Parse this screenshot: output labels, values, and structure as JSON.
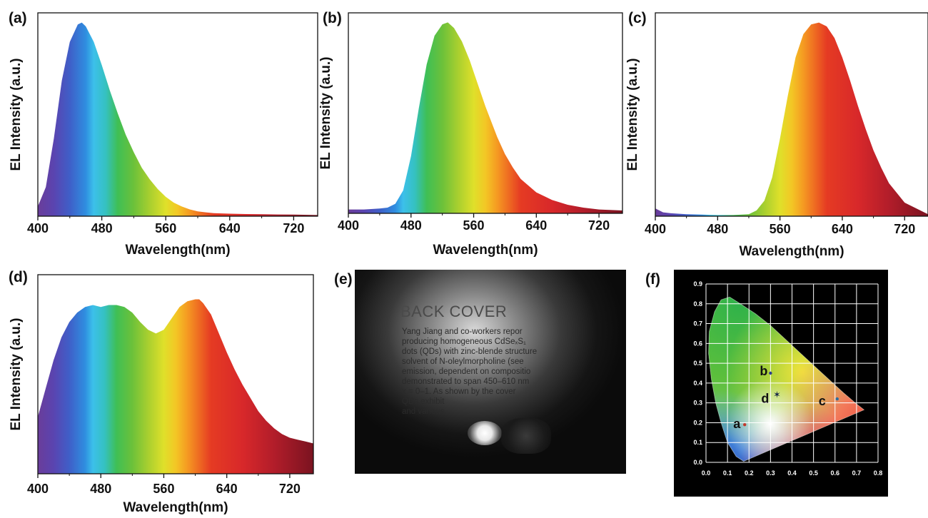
{
  "panels": {
    "a": "(a)",
    "b": "(b)",
    "c": "(c)",
    "d": "(d)",
    "e": "(e)",
    "f": "(f)"
  },
  "chart_data": [
    {
      "id": "a",
      "type": "area",
      "title": "",
      "xlabel": "Wavelength(nm)",
      "ylabel": "EL Intensity (a.u.)",
      "xlim": [
        400,
        750
      ],
      "ylim": [
        0,
        1.05
      ],
      "xticks": [
        400,
        480,
        560,
        640,
        720
      ],
      "grid": false,
      "fill": "spectral",
      "x": [
        400,
        410,
        420,
        430,
        440,
        450,
        455,
        460,
        470,
        480,
        490,
        500,
        510,
        520,
        530,
        540,
        550,
        560,
        570,
        580,
        590,
        600,
        610,
        620,
        640,
        660,
        680,
        700,
        720,
        750
      ],
      "y": [
        0.05,
        0.15,
        0.4,
        0.7,
        0.9,
        0.99,
        1.0,
        0.98,
        0.9,
        0.78,
        0.65,
        0.53,
        0.42,
        0.33,
        0.25,
        0.19,
        0.14,
        0.1,
        0.07,
        0.05,
        0.035,
        0.025,
        0.02,
        0.016,
        0.013,
        0.011,
        0.01,
        0.009,
        0.008,
        0.006
      ]
    },
    {
      "id": "b",
      "type": "area",
      "title": "",
      "xlabel": "Wavelength(nm)",
      "ylabel": "EL Intensity (a.u.)",
      "xlim": [
        400,
        750
      ],
      "ylim": [
        0,
        1.05
      ],
      "xticks": [
        400,
        480,
        560,
        640,
        720
      ],
      "grid": false,
      "fill": "spectral",
      "x": [
        400,
        420,
        440,
        450,
        460,
        470,
        480,
        490,
        500,
        510,
        520,
        527,
        535,
        545,
        555,
        565,
        575,
        590,
        600,
        610,
        620,
        640,
        660,
        680,
        700,
        720,
        750
      ],
      "y": [
        0.02,
        0.02,
        0.025,
        0.03,
        0.05,
        0.12,
        0.3,
        0.55,
        0.78,
        0.93,
        0.99,
        1.0,
        0.97,
        0.9,
        0.8,
        0.68,
        0.56,
        0.4,
        0.31,
        0.24,
        0.18,
        0.11,
        0.07,
        0.045,
        0.03,
        0.02,
        0.015
      ]
    },
    {
      "id": "c",
      "type": "area",
      "title": "",
      "xlabel": "Wavelength(nm)",
      "ylabel": "EL Intensity (a.u.)",
      "xlim": [
        400,
        750
      ],
      "ylim": [
        0,
        1.05
      ],
      "xticks": [
        400,
        480,
        560,
        640,
        720
      ],
      "grid": false,
      "fill": "spectral",
      "x": [
        400,
        410,
        420,
        440,
        460,
        480,
        500,
        520,
        530,
        540,
        550,
        560,
        570,
        580,
        590,
        600,
        610,
        620,
        630,
        640,
        650,
        660,
        670,
        680,
        690,
        700,
        720,
        750
      ],
      "y": [
        0.04,
        0.02,
        0.015,
        0.01,
        0.008,
        0.006,
        0.006,
        0.01,
        0.03,
        0.08,
        0.2,
        0.4,
        0.62,
        0.82,
        0.94,
        0.99,
        1.0,
        0.98,
        0.92,
        0.82,
        0.7,
        0.57,
        0.45,
        0.34,
        0.25,
        0.17,
        0.07,
        0.01
      ]
    },
    {
      "id": "d",
      "type": "area",
      "title": "",
      "xlabel": "Wavelength(nm)",
      "ylabel": "EL Intensity (a.u.)",
      "xlim": [
        400,
        750
      ],
      "ylim": [
        0,
        1.05
      ],
      "xticks": [
        400,
        480,
        560,
        640,
        720
      ],
      "grid": false,
      "fill": "spectral",
      "x": [
        400,
        410,
        420,
        430,
        440,
        450,
        460,
        470,
        480,
        490,
        500,
        510,
        520,
        530,
        540,
        550,
        560,
        570,
        580,
        590,
        600,
        605,
        610,
        620,
        630,
        640,
        650,
        660,
        670,
        680,
        690,
        700,
        710,
        720,
        730,
        740,
        750
      ],
      "y": [
        0.3,
        0.45,
        0.6,
        0.72,
        0.8,
        0.85,
        0.88,
        0.89,
        0.88,
        0.89,
        0.89,
        0.88,
        0.85,
        0.8,
        0.76,
        0.74,
        0.76,
        0.82,
        0.88,
        0.91,
        0.92,
        0.92,
        0.9,
        0.84,
        0.74,
        0.64,
        0.55,
        0.47,
        0.4,
        0.33,
        0.28,
        0.24,
        0.21,
        0.19,
        0.18,
        0.17,
        0.16
      ]
    },
    {
      "id": "f",
      "type": "scatter",
      "title": "",
      "xlabel": "",
      "ylabel": "",
      "xlim": [
        0,
        0.8
      ],
      "ylim": [
        0,
        0.9
      ],
      "xticks": [
        "0.0",
        "0.1",
        "0.2",
        "0.3",
        "0.4",
        "0.5",
        "0.6",
        "0.7",
        "0.8"
      ],
      "yticks": [
        "0.0",
        "0.1",
        "0.2",
        "0.3",
        "0.4",
        "0.5",
        "0.6",
        "0.7",
        "0.8",
        "0.9"
      ],
      "grid": true,
      "points": [
        {
          "label": "a",
          "x": 0.18,
          "y": 0.19
        },
        {
          "label": "b",
          "x": 0.3,
          "y": 0.45
        },
        {
          "label": "c",
          "x": 0.61,
          "y": 0.32
        },
        {
          "label": "d",
          "x": 0.33,
          "y": 0.34
        }
      ]
    }
  ],
  "photo_e": {
    "heading": "BACK COVER",
    "lines": [
      "Yang Jiang and co-workers repor",
      "producing homogeneous CdSeₓS₁",
      "dots (QDs) with zinc-blende structure",
      "solvent of N-oleylmorpholine (see",
      "emission, dependent on compositio",
      "demonstrated to span 450–610 nm",
      "x = 0–1. As shown by the cover",
      "QDs exhibit",
      "and various"
    ]
  }
}
